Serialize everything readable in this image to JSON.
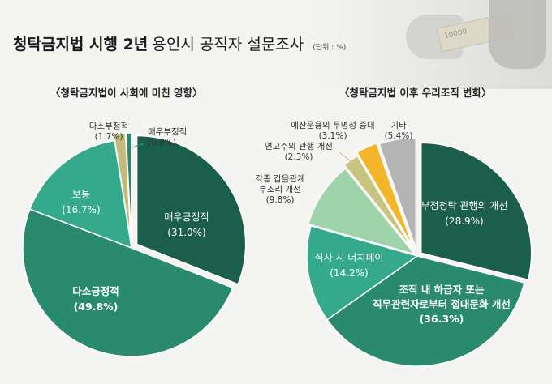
{
  "header": {
    "title_bold": "청탁금지법 시행 2년",
    "title_rest": "용인시 공직자 설문조사",
    "unit": "(단위 : %)"
  },
  "photo": {
    "bill_text": "10000"
  },
  "chart_data": [
    {
      "type": "pie",
      "title": "〈청탁금지법이 사회에 미친 영향〉",
      "slices": [
        {
          "label": "매우긍정적",
          "value": 31.0,
          "value_label": "(31.0%)",
          "color": "#1b5e4c"
        },
        {
          "label": "다소긍정적",
          "value": 49.8,
          "value_label": "(49.8%)",
          "color": "#2a8a6e"
        },
        {
          "label": "보통",
          "value": 16.7,
          "value_label": "(16.7%)",
          "color": "#35a98c"
        },
        {
          "label": "다소부정적",
          "value": 1.7,
          "value_label": "(1.7%)",
          "color": "#c2bb7a"
        },
        {
          "label": "매우부정적",
          "value": 0.8,
          "value_label": "(0.8%)",
          "color": "#2a8a6e"
        }
      ]
    },
    {
      "type": "pie",
      "title": "〈청탁금지법 이후 우리조직 변화〉",
      "slices": [
        {
          "label": "부정청탁 관행의 개선",
          "value": 28.9,
          "value_label": "(28.9%)",
          "color": "#1b5e4c"
        },
        {
          "label": "조직 내 하급자 또는 직무관련자로부터 접대문화 개선",
          "value": 36.3,
          "value_label": "(36.3%)",
          "color": "#2a8a6e"
        },
        {
          "label": "식사 시 더치페이",
          "value": 14.2,
          "value_label": "(14.2%)",
          "color": "#35a98c"
        },
        {
          "label": "각종 갑을관계 부조리 개선",
          "value": 9.8,
          "value_label": "(9.8%)",
          "color": "#9fd3a9"
        },
        {
          "label": "연고주의 관행 개선",
          "value": 2.3,
          "value_label": "(2.3%)",
          "color": "#c8c37e"
        },
        {
          "label": "예산운용의 투명성 증대",
          "value": 3.1,
          "value_label": "(3.1%)",
          "color": "#f3b62b"
        },
        {
          "label": "기타",
          "value": 5.4,
          "value_label": "(5.4%)",
          "color": "#b4b4b4"
        }
      ]
    }
  ]
}
